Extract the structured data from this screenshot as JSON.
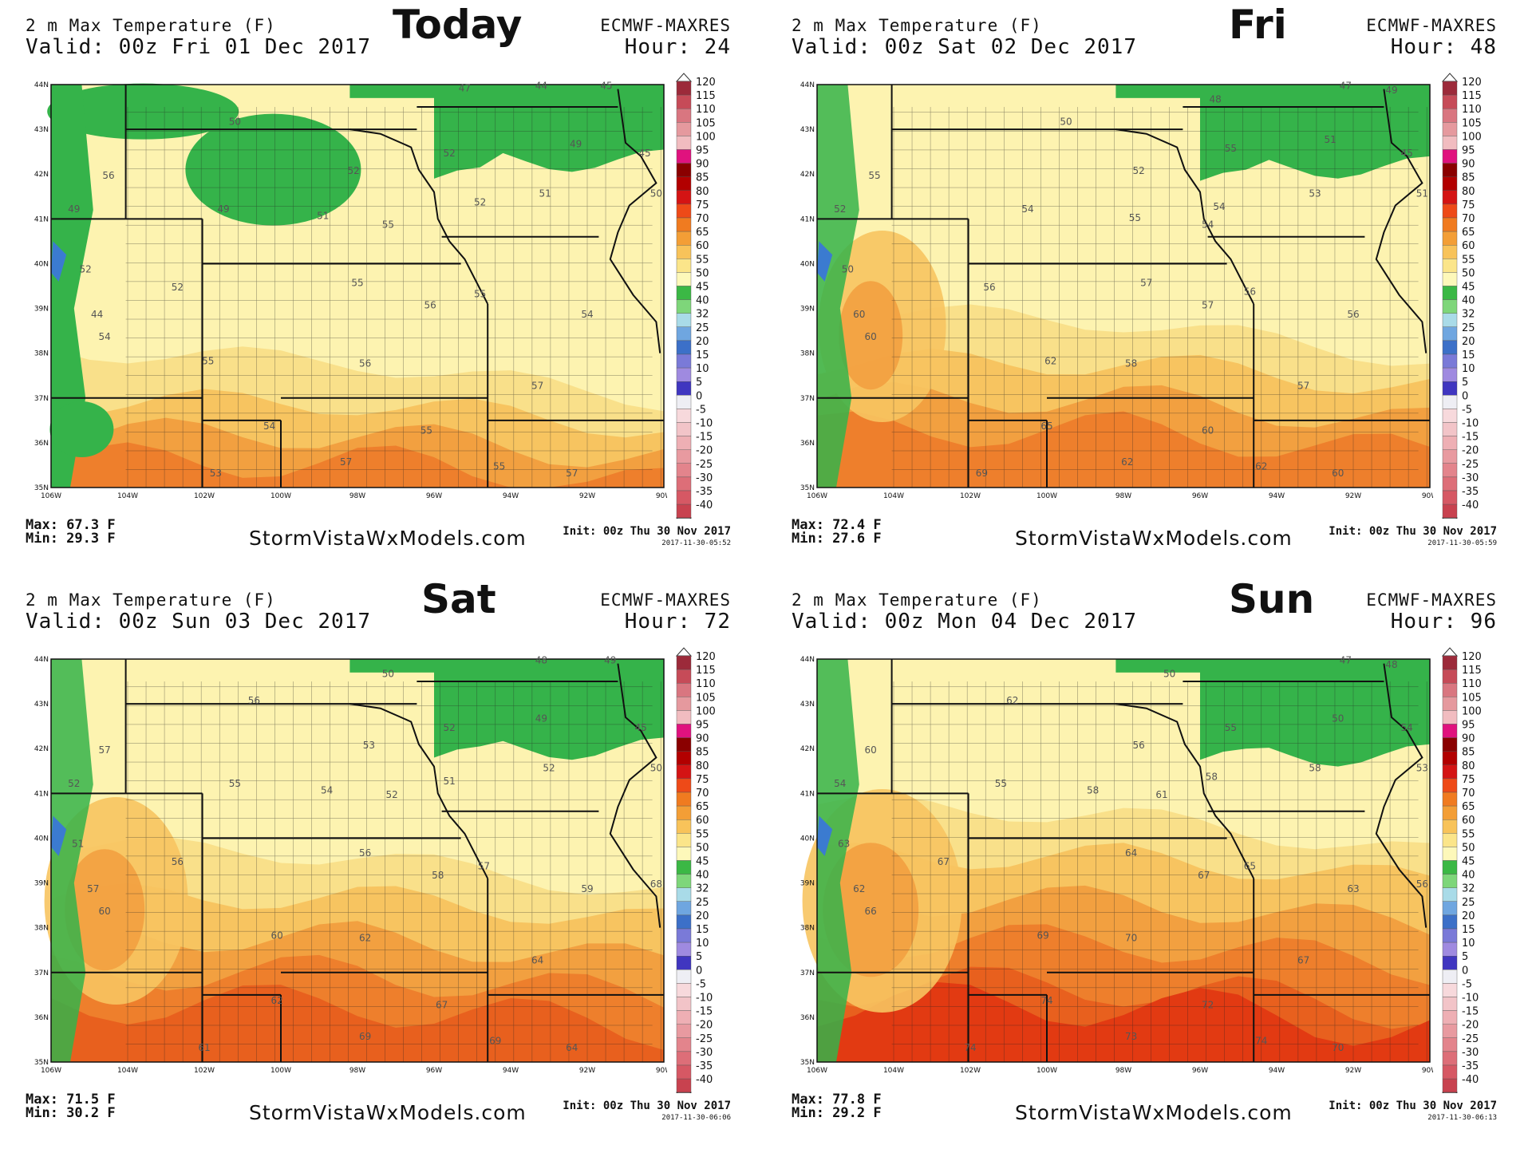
{
  "panels": [
    {
      "title": "2 m Max Temperature (F)",
      "valid": "Valid: 00z Fri 01 Dec 2017",
      "day_label": "Today",
      "model": "ECMWF-MAXRES",
      "hour": "Hour: 24",
      "max": "Max: 67.3 F",
      "min": "Min: 29.3 F",
      "site": "StormVistaWxModels.com",
      "init": "Init: 00z Thu 30 Nov 2017",
      "stamp": "2017-11-30-05:52",
      "labels": [
        {
          "v": "47",
          "lon": -95.2,
          "lat": 43.85
        },
        {
          "v": "44",
          "lon": -93.2,
          "lat": 43.9
        },
        {
          "v": "45",
          "lon": -91.5,
          "lat": 43.9
        },
        {
          "v": "50",
          "lon": -101.2,
          "lat": 43.1
        },
        {
          "v": "49",
          "lon": -92.3,
          "lat": 42.6
        },
        {
          "v": "45",
          "lon": -90.5,
          "lat": 42.4
        },
        {
          "v": "56",
          "lon": -104.5,
          "lat": 41.9
        },
        {
          "v": "52",
          "lon": -98.1,
          "lat": 42.0
        },
        {
          "v": "52",
          "lon": -95.6,
          "lat": 42.4
        },
        {
          "v": "52",
          "lon": -94.8,
          "lat": 41.3
        },
        {
          "v": "51",
          "lon": -93.1,
          "lat": 41.5
        },
        {
          "v": "50",
          "lon": -90.2,
          "lat": 41.5
        },
        {
          "v": "49",
          "lon": -105.4,
          "lat": 41.15
        },
        {
          "v": "49",
          "lon": -101.5,
          "lat": 41.15
        },
        {
          "v": "51",
          "lon": -98.9,
          "lat": 41.0
        },
        {
          "v": "55",
          "lon": -97.2,
          "lat": 40.8
        },
        {
          "v": "52",
          "lon": -105.1,
          "lat": 39.8
        },
        {
          "v": "52",
          "lon": -102.7,
          "lat": 39.4
        },
        {
          "v": "55",
          "lon": -98.0,
          "lat": 39.5
        },
        {
          "v": "55",
          "lon": -94.8,
          "lat": 39.25
        },
        {
          "v": "56",
          "lon": -96.1,
          "lat": 39.0
        },
        {
          "v": "44",
          "lon": -104.8,
          "lat": 38.8
        },
        {
          "v": "54",
          "lon": -92.0,
          "lat": 38.8
        },
        {
          "v": "54",
          "lon": -104.6,
          "lat": 38.3
        },
        {
          "v": "55",
          "lon": -101.9,
          "lat": 37.75
        },
        {
          "v": "56",
          "lon": -97.8,
          "lat": 37.7
        },
        {
          "v": "57",
          "lon": -93.3,
          "lat": 37.2
        },
        {
          "v": "54",
          "lon": -100.3,
          "lat": 36.3
        },
        {
          "v": "55",
          "lon": -96.2,
          "lat": 36.2
        },
        {
          "v": "55",
          "lon": -94.3,
          "lat": 35.4
        },
        {
          "v": "57",
          "lon": -98.3,
          "lat": 35.5
        },
        {
          "v": "53",
          "lon": -101.7,
          "lat": 35.25
        },
        {
          "v": "57",
          "lon": -92.4,
          "lat": 35.25
        }
      ]
    },
    {
      "title": "2 m Max Temperature (F)",
      "valid": "Valid: 00z Sat 02 Dec 2017",
      "day_label": "Fri",
      "model": "ECMWF-MAXRES",
      "hour": "Hour: 48",
      "max": "Max: 72.4 F",
      "min": "Min: 27.6 F",
      "site": "StormVistaWxModels.com",
      "init": "Init: 00z Thu 30 Nov 2017",
      "stamp": "2017-11-30-05:59",
      "labels": [
        {
          "v": "47",
          "lon": -92.2,
          "lat": 43.9
        },
        {
          "v": "49",
          "lon": -91.0,
          "lat": 43.8
        },
        {
          "v": "48",
          "lon": -95.6,
          "lat": 43.6
        },
        {
          "v": "50",
          "lon": -99.5,
          "lat": 43.1
        },
        {
          "v": "51",
          "lon": -92.6,
          "lat": 42.7
        },
        {
          "v": "45",
          "lon": -90.6,
          "lat": 42.4
        },
        {
          "v": "55",
          "lon": -95.2,
          "lat": 42.5
        },
        {
          "v": "55",
          "lon": -104.5,
          "lat": 41.9
        },
        {
          "v": "52",
          "lon": -97.6,
          "lat": 42.0
        },
        {
          "v": "53",
          "lon": -93.0,
          "lat": 41.5
        },
        {
          "v": "51",
          "lon": -90.2,
          "lat": 41.5
        },
        {
          "v": "52",
          "lon": -105.4,
          "lat": 41.15
        },
        {
          "v": "54",
          "lon": -100.5,
          "lat": 41.15
        },
        {
          "v": "55",
          "lon": -97.7,
          "lat": 40.95
        },
        {
          "v": "54",
          "lon": -95.5,
          "lat": 41.2
        },
        {
          "v": "54",
          "lon": -95.8,
          "lat": 40.8
        },
        {
          "v": "57",
          "lon": -97.4,
          "lat": 39.5
        },
        {
          "v": "50",
          "lon": -105.2,
          "lat": 39.8
        },
        {
          "v": "56",
          "lon": -101.5,
          "lat": 39.4
        },
        {
          "v": "56",
          "lon": -94.7,
          "lat": 39.3
        },
        {
          "v": "57",
          "lon": -95.8,
          "lat": 39.0
        },
        {
          "v": "60",
          "lon": -104.9,
          "lat": 38.8
        },
        {
          "v": "56",
          "lon": -92.0,
          "lat": 38.8
        },
        {
          "v": "60",
          "lon": -104.6,
          "lat": 38.3
        },
        {
          "v": "62",
          "lon": -99.9,
          "lat": 37.75
        },
        {
          "v": "58",
          "lon": -97.8,
          "lat": 37.7
        },
        {
          "v": "57",
          "lon": -93.3,
          "lat": 37.2
        },
        {
          "v": "65",
          "lon": -100.0,
          "lat": 36.3
        },
        {
          "v": "60",
          "lon": -95.8,
          "lat": 36.2
        },
        {
          "v": "62",
          "lon": -97.9,
          "lat": 35.5
        },
        {
          "v": "62",
          "lon": -94.4,
          "lat": 35.4
        },
        {
          "v": "69",
          "lon": -101.7,
          "lat": 35.25
        },
        {
          "v": "60",
          "lon": -92.4,
          "lat": 35.25
        }
      ]
    },
    {
      "title": "2 m Max Temperature (F)",
      "valid": "Valid: 00z Sun 03 Dec 2017",
      "day_label": "Sat",
      "model": "ECMWF-MAXRES",
      "hour": "Hour: 72",
      "max": "Max: 71.5 F",
      "min": "Min: 30.2 F",
      "site": "StormVistaWxModels.com",
      "init": "Init: 00z Thu 30 Nov 2017",
      "stamp": "2017-11-30-06:06",
      "labels": [
        {
          "v": "50",
          "lon": -97.2,
          "lat": 43.6
        },
        {
          "v": "48",
          "lon": -93.2,
          "lat": 43.9
        },
        {
          "v": "49",
          "lon": -91.4,
          "lat": 43.9
        },
        {
          "v": "56",
          "lon": -100.7,
          "lat": 43.0
        },
        {
          "v": "49",
          "lon": -93.2,
          "lat": 42.6
        },
        {
          "v": "45",
          "lon": -90.6,
          "lat": 42.4
        },
        {
          "v": "52",
          "lon": -95.6,
          "lat": 42.4
        },
        {
          "v": "57",
          "lon": -104.6,
          "lat": 41.9
        },
        {
          "v": "53",
          "lon": -97.7,
          "lat": 42.0
        },
        {
          "v": "52",
          "lon": -93.0,
          "lat": 41.5
        },
        {
          "v": "50",
          "lon": -90.2,
          "lat": 41.5
        },
        {
          "v": "52",
          "lon": -105.4,
          "lat": 41.15
        },
        {
          "v": "55",
          "lon": -101.2,
          "lat": 41.15
        },
        {
          "v": "54",
          "lon": -98.8,
          "lat": 41.0
        },
        {
          "v": "52",
          "lon": -97.1,
          "lat": 40.9
        },
        {
          "v": "51",
          "lon": -95.6,
          "lat": 41.2
        },
        {
          "v": "56",
          "lon": -97.8,
          "lat": 39.6
        },
        {
          "v": "51",
          "lon": -105.3,
          "lat": 39.8
        },
        {
          "v": "56",
          "lon": -102.7,
          "lat": 39.4
        },
        {
          "v": "57",
          "lon": -94.7,
          "lat": 39.3
        },
        {
          "v": "58",
          "lon": -95.9,
          "lat": 39.1
        },
        {
          "v": "57",
          "lon": -104.9,
          "lat": 38.8
        },
        {
          "v": "59",
          "lon": -92.0,
          "lat": 38.8
        },
        {
          "v": "60",
          "lon": -104.6,
          "lat": 38.3
        },
        {
          "v": "60",
          "lon": -100.1,
          "lat": 37.75
        },
        {
          "v": "62",
          "lon": -97.8,
          "lat": 37.7
        },
        {
          "v": "64",
          "lon": -93.3,
          "lat": 37.2
        },
        {
          "v": "62",
          "lon": -100.1,
          "lat": 36.3
        },
        {
          "v": "67",
          "lon": -95.8,
          "lat": 36.2
        },
        {
          "v": "69",
          "lon": -97.8,
          "lat": 35.5
        },
        {
          "v": "69",
          "lon": -94.4,
          "lat": 35.4
        },
        {
          "v": "61",
          "lon": -102.0,
          "lat": 35.25
        },
        {
          "v": "64",
          "lon": -92.4,
          "lat": 35.25
        },
        {
          "v": "68",
          "lon": -90.2,
          "lat": 38.9
        }
      ]
    },
    {
      "title": "2 m Max Temperature (F)",
      "valid": "Valid: 00z Mon 04 Dec 2017",
      "day_label": "Sun",
      "model": "ECMWF-MAXRES",
      "hour": "Hour: 96",
      "max": "Max: 77.8 F",
      "min": "Min: 29.2 F",
      "site": "StormVistaWxModels.com",
      "init": "Init: 00z Thu 30 Nov 2017",
      "stamp": "2017-11-30-06:13",
      "labels": [
        {
          "v": "50",
          "lon": -96.8,
          "lat": 43.6
        },
        {
          "v": "47",
          "lon": -92.2,
          "lat": 43.9
        },
        {
          "v": "48",
          "lon": -91.0,
          "lat": 43.8
        },
        {
          "v": "62",
          "lon": -100.9,
          "lat": 43.0
        },
        {
          "v": "50",
          "lon": -92.4,
          "lat": 42.6
        },
        {
          "v": "54",
          "lon": -90.6,
          "lat": 42.4
        },
        {
          "v": "55",
          "lon": -95.2,
          "lat": 42.4
        },
        {
          "v": "60",
          "lon": -104.6,
          "lat": 41.9
        },
        {
          "v": "56",
          "lon": -97.6,
          "lat": 42.0
        },
        {
          "v": "58",
          "lon": -93.0,
          "lat": 41.5
        },
        {
          "v": "53",
          "lon": -90.2,
          "lat": 41.5
        },
        {
          "v": "54",
          "lon": -105.4,
          "lat": 41.15
        },
        {
          "v": "55",
          "lon": -101.2,
          "lat": 41.15
        },
        {
          "v": "58",
          "lon": -98.8,
          "lat": 41.0
        },
        {
          "v": "61",
          "lon": -97.0,
          "lat": 40.9
        },
        {
          "v": "58",
          "lon": -95.7,
          "lat": 41.3
        },
        {
          "v": "64",
          "lon": -97.8,
          "lat": 39.6
        },
        {
          "v": "63",
          "lon": -105.3,
          "lat": 39.8
        },
        {
          "v": "67",
          "lon": -102.7,
          "lat": 39.4
        },
        {
          "v": "65",
          "lon": -94.7,
          "lat": 39.3
        },
        {
          "v": "67",
          "lon": -95.9,
          "lat": 39.1
        },
        {
          "v": "62",
          "lon": -104.9,
          "lat": 38.8
        },
        {
          "v": "63",
          "lon": -92.0,
          "lat": 38.8
        },
        {
          "v": "66",
          "lon": -104.6,
          "lat": 38.3
        },
        {
          "v": "69",
          "lon": -100.1,
          "lat": 37.75
        },
        {
          "v": "70",
          "lon": -97.8,
          "lat": 37.7
        },
        {
          "v": "67",
          "lon": -93.3,
          "lat": 37.2
        },
        {
          "v": "74",
          "lon": -100.0,
          "lat": 36.3
        },
        {
          "v": "72",
          "lon": -95.8,
          "lat": 36.2
        },
        {
          "v": "73",
          "lon": -97.8,
          "lat": 35.5
        },
        {
          "v": "74",
          "lon": -94.4,
          "lat": 35.4
        },
        {
          "v": "74",
          "lon": -102.0,
          "lat": 35.25
        },
        {
          "v": "70",
          "lon": -92.4,
          "lat": 35.25
        },
        {
          "v": "56",
          "lon": -90.2,
          "lat": 38.9
        }
      ]
    }
  ],
  "map": {
    "lon_ticks": [
      "106W",
      "104W",
      "102W",
      "100W",
      "98W",
      "96W",
      "94W",
      "92W",
      "90W"
    ],
    "lat_ticks": [
      "35N",
      "36N",
      "37N",
      "38N",
      "39N",
      "40N",
      "41N",
      "42N",
      "43N",
      "44N"
    ],
    "lon_range": [
      -106,
      -90
    ],
    "lat_range": [
      35,
      44
    ]
  },
  "legend": {
    "values": [
      "120",
      "115",
      "110",
      "105",
      "100",
      "95",
      "90",
      "85",
      "80",
      "75",
      "70",
      "65",
      "60",
      "55",
      "50",
      "45",
      "40",
      "32",
      "25",
      "20",
      "15",
      "10",
      "5",
      "0",
      "-5",
      "-10",
      "-15",
      "-20",
      "-25",
      "-30",
      "-35",
      "-40"
    ],
    "colors": [
      "#9c2a3a",
      "#c64b58",
      "#d97680",
      "#e5999e",
      "#f1bcc0",
      "#e0127e",
      "#8a0000",
      "#b20000",
      "#d41414",
      "#ee4a18",
      "#f07b20",
      "#f39e36",
      "#f8c35a",
      "#fbe58a",
      "#fdf8ba",
      "#3bb845",
      "#7ed67a",
      "#a9dbe8",
      "#6fa6e0",
      "#3c70c8",
      "#7a7ad8",
      "#9f8ae0",
      "#4036c0",
      "#eeeef4",
      "#f7d9dc",
      "#f2c4c8",
      "#eeafb4",
      "#e89aa0",
      "#e3848c",
      "#dd6e78",
      "#d65864",
      "#c8424f"
    ]
  }
}
